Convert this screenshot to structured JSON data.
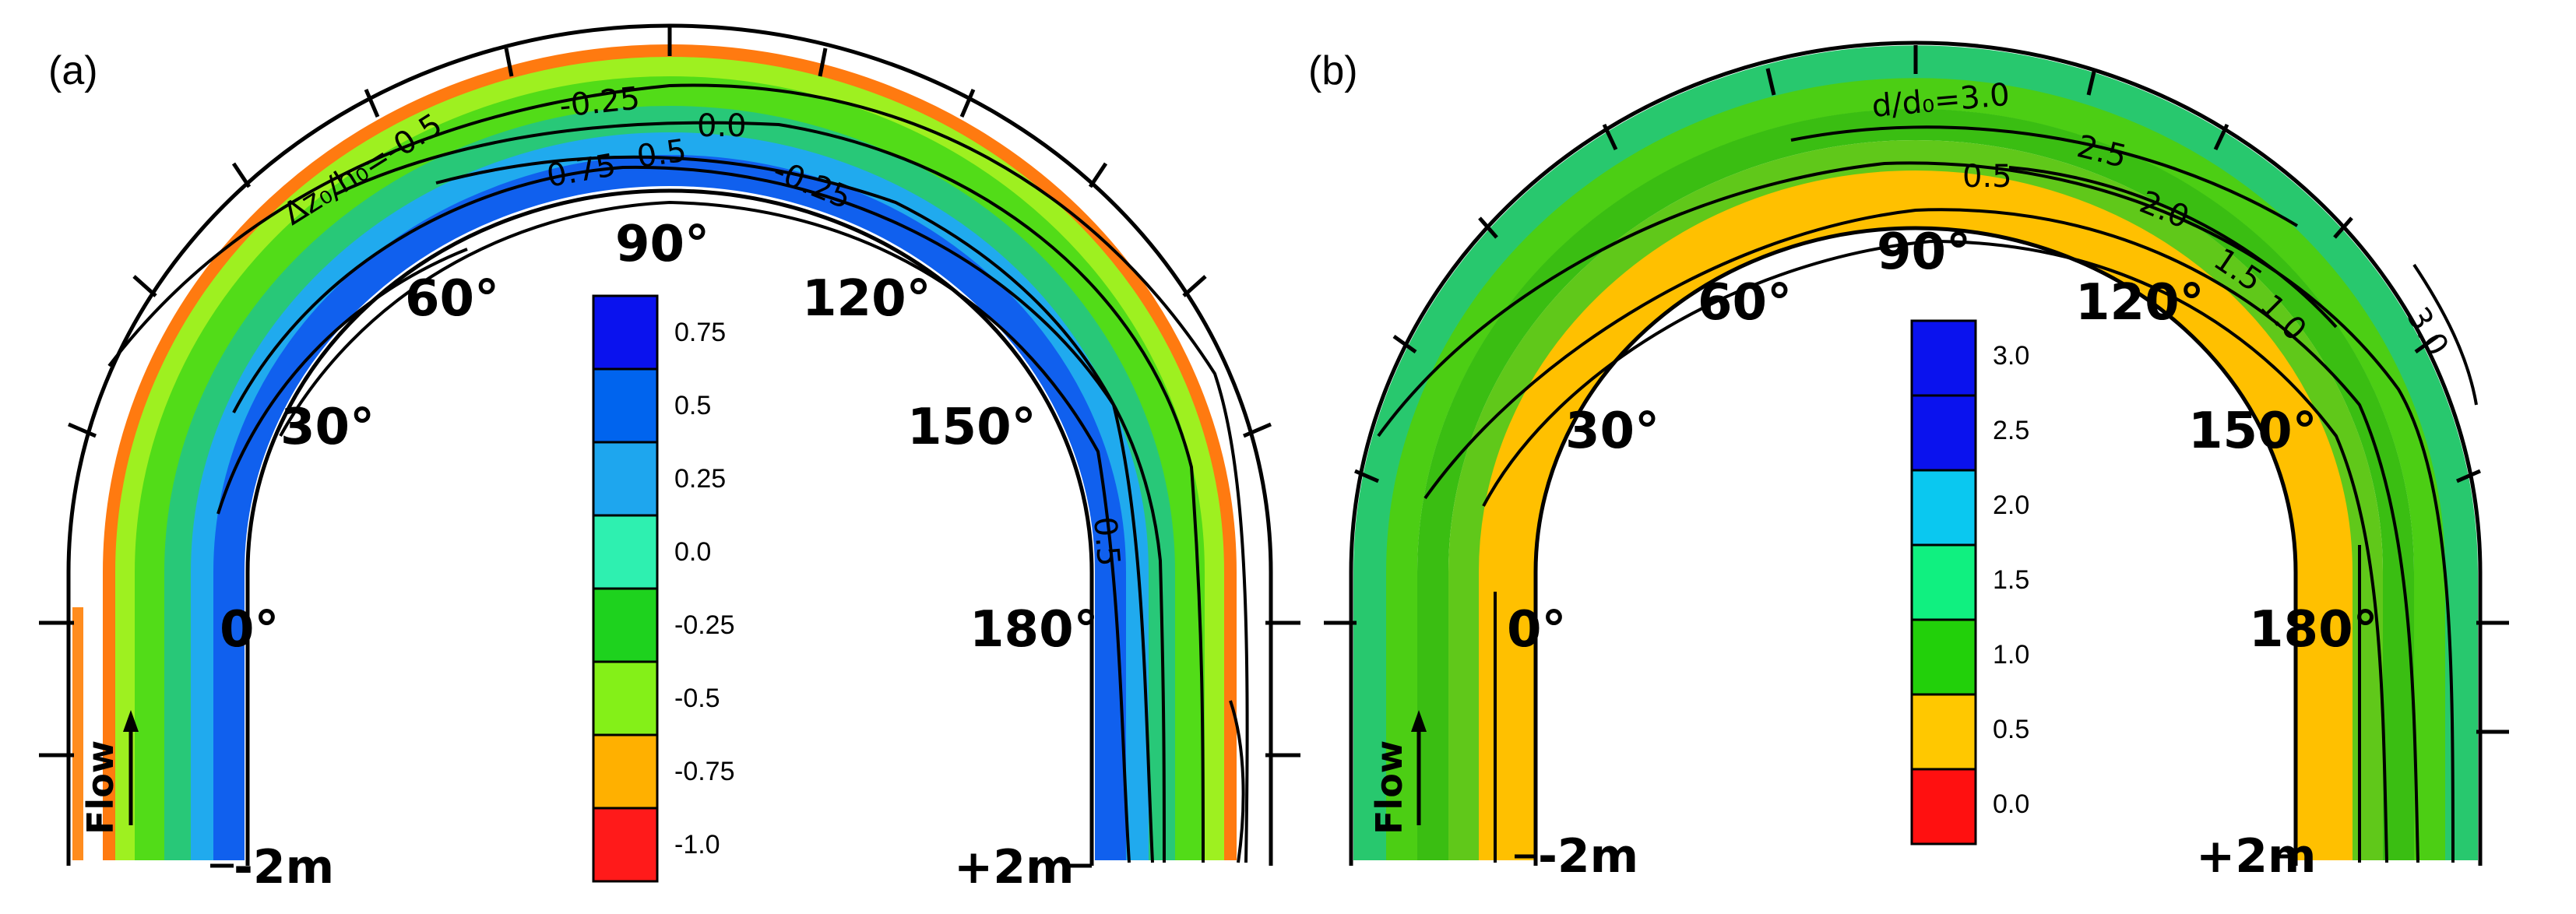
{
  "panels": [
    {
      "letter": "(a)",
      "flow_label": "Flow",
      "angles": [
        "0°",
        "30°",
        "60°",
        "90°",
        "120°",
        "150°",
        "180°"
      ],
      "dist_left": "-2m",
      "dist_right": "+2m",
      "colorbar": {
        "ticks": [
          "0.75",
          "0.5",
          "0.25",
          "0.0",
          "-0.25",
          "-0.5",
          "-0.75",
          "-1.0"
        ],
        "colors": [
          "#0a12ee",
          "#0064ee",
          "#1ea6ee",
          "#2ef0b0",
          "#1ed21e",
          "#84f018",
          "#ffb000",
          "#ff1a1a"
        ]
      },
      "contour_labels": [
        "Δz₀/h₀=-0.5",
        "-0.25",
        "0.0",
        "0.75",
        "0.5",
        "-0.25",
        "0.5"
      ]
    },
    {
      "letter": "(b)",
      "flow_label": "Flow",
      "angles": [
        "0°",
        "30°",
        "60°",
        "90°",
        "120°",
        "150°",
        "180°"
      ],
      "dist_left": "-2m",
      "dist_right": "+2m",
      "colorbar": {
        "ticks": [
          "3.0",
          "2.5",
          "2.0",
          "1.5",
          "1.0",
          "0.5",
          "0.0"
        ],
        "colors": [
          "#0a12ee",
          "#0a12ee",
          "#0ac8f0",
          "#10f080",
          "#22d00a",
          "#ffc800",
          "#ff1010"
        ]
      },
      "contour_labels": [
        "d/d₀=3.0",
        "2.5",
        "2.0",
        "1.5",
        "1.0",
        "0.5",
        "3.0"
      ]
    }
  ]
}
